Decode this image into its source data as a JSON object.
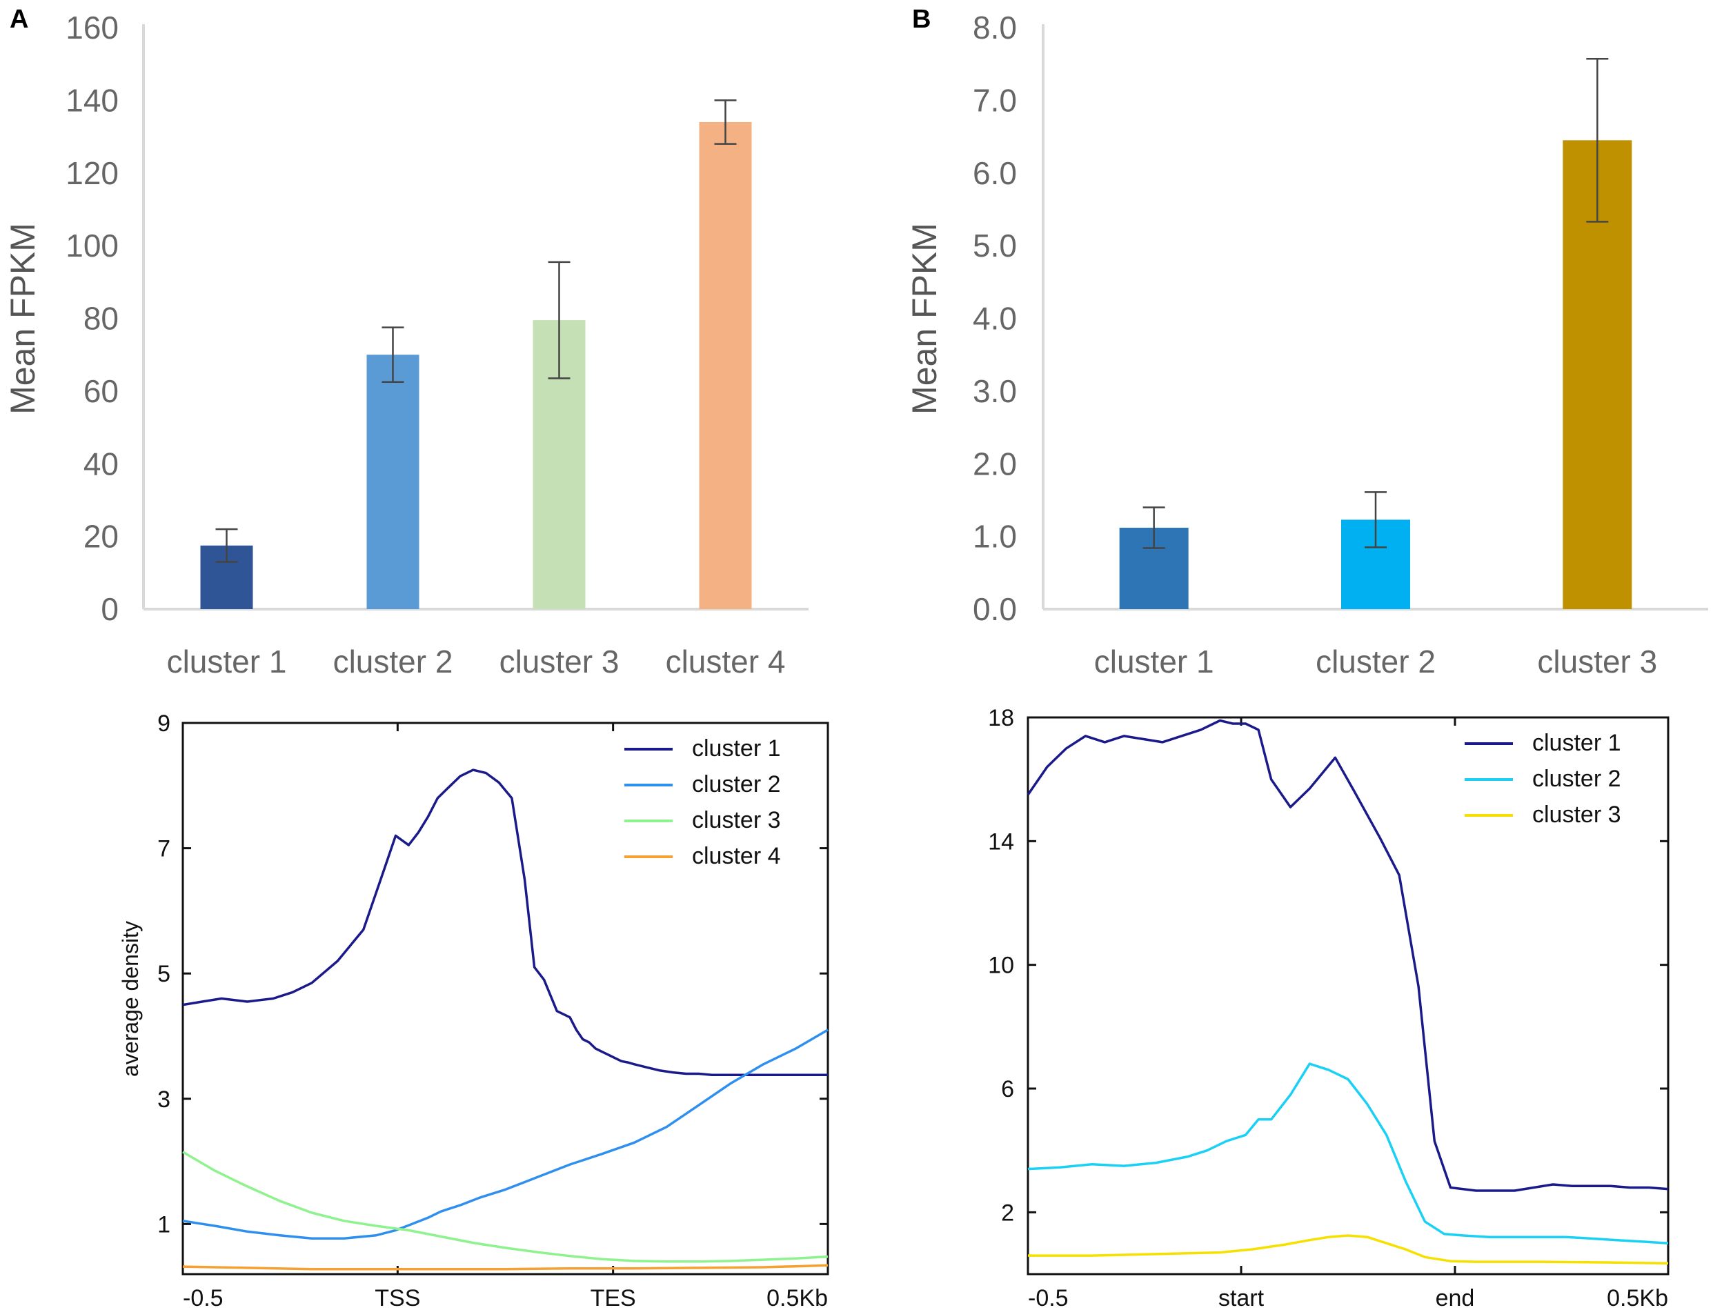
{
  "panels": {
    "a_label": "A",
    "b_label": "B"
  },
  "chart_data": [
    {
      "id": "A-top",
      "type": "bar",
      "title": "",
      "xlabel": "",
      "ylabel": "Mean FPKM",
      "ylim": [
        0,
        160
      ],
      "yticks": [
        "0",
        "20",
        "40",
        "60",
        "80",
        "100",
        "120",
        "140",
        "160"
      ],
      "categories": [
        "cluster 1",
        "cluster 2",
        "cluster 3",
        "cluster 4"
      ],
      "values": [
        17.5,
        70,
        79.5,
        134
      ],
      "errors": [
        4.5,
        7.5,
        16,
        6
      ],
      "colors": [
        "#2f5597",
        "#5b9bd5",
        "#c5e0b4",
        "#f4b183"
      ],
      "grid": false
    },
    {
      "id": "B-top",
      "type": "bar",
      "title": "",
      "xlabel": "",
      "ylabel": "Mean FPKM",
      "ylim": [
        0,
        8
      ],
      "yticks": [
        "0.0",
        "1.0",
        "2.0",
        "3.0",
        "4.0",
        "5.0",
        "6.0",
        "7.0",
        "8.0"
      ],
      "categories": [
        "cluster 1",
        "cluster 2",
        "cluster 3"
      ],
      "values": [
        1.12,
        1.23,
        6.45
      ],
      "errors": [
        0.28,
        0.38,
        1.12
      ],
      "colors": [
        "#2e75b6",
        "#00b0f0",
        "#bf9000"
      ],
      "grid": false
    },
    {
      "id": "A-bottom",
      "type": "line",
      "title": "",
      "xlabel": "",
      "ylabel": "average density",
      "xlim": [
        0,
        100
      ],
      "ylim": [
        0.2,
        9
      ],
      "xticks": [
        {
          "pos": 0,
          "label": "-0.5"
        },
        {
          "pos": 33.3,
          "label": "TSS"
        },
        {
          "pos": 66.7,
          "label": "TES"
        },
        {
          "pos": 100,
          "label": "0.5Kb"
        }
      ],
      "yticks": [
        {
          "value": 1,
          "label": "1"
        },
        {
          "value": 3,
          "label": "3"
        },
        {
          "value": 5,
          "label": "5"
        },
        {
          "value": 7,
          "label": "7"
        },
        {
          "value": 9,
          "label": "9"
        }
      ],
      "legend_position": "top-right",
      "series": [
        {
          "name": "cluster 1",
          "color": "#1a1a8a",
          "x": [
            0,
            3,
            6,
            10,
            14,
            17,
            20,
            24,
            28,
            31,
            33,
            35,
            36.5,
            38,
            39.5,
            41,
            43,
            45,
            47,
            49,
            51,
            53,
            54.5,
            56,
            58,
            60,
            61,
            62,
            63,
            64,
            65,
            66,
            67,
            68,
            69,
            70,
            72,
            74,
            76,
            78,
            80,
            82,
            84,
            86,
            88,
            90,
            92,
            94,
            96,
            98,
            100
          ],
          "y": [
            4.5,
            4.55,
            4.6,
            4.55,
            4.6,
            4.7,
            4.85,
            5.2,
            5.7,
            6.6,
            7.2,
            7.05,
            7.25,
            7.5,
            7.8,
            7.95,
            8.15,
            8.25,
            8.2,
            8.05,
            7.8,
            6.5,
            5.1,
            4.9,
            4.4,
            4.3,
            4.1,
            3.95,
            3.9,
            3.8,
            3.75,
            3.7,
            3.65,
            3.6,
            3.58,
            3.55,
            3.5,
            3.45,
            3.42,
            3.4,
            3.4,
            3.38,
            3.38,
            3.38,
            3.38,
            3.38,
            3.38,
            3.38,
            3.38,
            3.38,
            3.38
          ]
        },
        {
          "name": "cluster 2",
          "color": "#2f8fef",
          "x": [
            0,
            5,
            10,
            15,
            20,
            25,
            30,
            33,
            35,
            38,
            40,
            43,
            46,
            50,
            55,
            60,
            65,
            70,
            75,
            80,
            85,
            90,
            95,
            100
          ],
          "y": [
            1.05,
            0.97,
            0.88,
            0.82,
            0.77,
            0.77,
            0.82,
            0.9,
            0.98,
            1.1,
            1.2,
            1.3,
            1.42,
            1.55,
            1.75,
            1.95,
            2.12,
            2.3,
            2.55,
            2.9,
            3.25,
            3.55,
            3.8,
            4.1
          ]
        },
        {
          "name": "cluster 3",
          "color": "#8ef28e",
          "x": [
            0,
            5,
            10,
            15,
            20,
            25,
            30,
            35,
            40,
            45,
            50,
            55,
            60,
            65,
            70,
            75,
            80,
            85,
            90,
            95,
            100
          ],
          "y": [
            2.15,
            1.85,
            1.6,
            1.37,
            1.18,
            1.05,
            0.97,
            0.9,
            0.8,
            0.7,
            0.62,
            0.55,
            0.49,
            0.44,
            0.41,
            0.4,
            0.4,
            0.41,
            0.43,
            0.45,
            0.48
          ]
        },
        {
          "name": "cluster 4",
          "color": "#f5a030",
          "x": [
            0,
            10,
            20,
            30,
            40,
            50,
            60,
            70,
            80,
            90,
            100
          ],
          "y": [
            0.32,
            0.3,
            0.28,
            0.28,
            0.28,
            0.28,
            0.29,
            0.29,
            0.3,
            0.31,
            0.34
          ]
        }
      ]
    },
    {
      "id": "B-bottom",
      "type": "line",
      "title": "",
      "xlabel": "",
      "ylabel": "",
      "xlim": [
        0,
        100
      ],
      "ylim": [
        0,
        18
      ],
      "xticks": [
        {
          "pos": 0,
          "label": "-0.5"
        },
        {
          "pos": 33.3,
          "label": "start"
        },
        {
          "pos": 66.7,
          "label": "end"
        },
        {
          "pos": 100,
          "label": "0.5Kb"
        }
      ],
      "yticks": [
        {
          "value": 2,
          "label": "2"
        },
        {
          "value": 6,
          "label": "6"
        },
        {
          "value": 10,
          "label": "10"
        },
        {
          "value": 14,
          "label": "14"
        },
        {
          "value": 18,
          "label": "18"
        }
      ],
      "legend_position": "top-right",
      "series": [
        {
          "name": "cluster 1",
          "color": "#1a1a8a",
          "x": [
            0,
            3,
            6,
            9,
            12,
            15,
            18,
            21,
            24,
            27,
            30,
            32,
            34,
            36,
            38,
            41,
            44,
            48,
            51,
            55,
            58,
            61,
            63.5,
            66,
            68,
            70,
            73,
            76,
            79,
            82,
            85,
            88,
            91,
            94,
            97,
            100
          ],
          "y": [
            15.5,
            16.4,
            17.0,
            17.4,
            17.2,
            17.4,
            17.3,
            17.2,
            17.4,
            17.6,
            17.9,
            17.8,
            17.8,
            17.6,
            16.0,
            15.1,
            15.7,
            16.7,
            15.6,
            14.1,
            12.9,
            9.3,
            4.3,
            2.8,
            2.75,
            2.7,
            2.7,
            2.7,
            2.8,
            2.9,
            2.85,
            2.85,
            2.85,
            2.8,
            2.8,
            2.75
          ]
        },
        {
          "name": "cluster 2",
          "color": "#1ad0f5",
          "x": [
            0,
            5,
            10,
            15,
            20,
            25,
            28,
            31,
            34,
            36,
            38,
            41,
            44,
            47,
            50,
            53,
            56,
            59,
            62,
            65,
            68,
            72,
            76,
            80,
            84,
            88,
            92,
            96,
            100
          ],
          "y": [
            3.4,
            3.45,
            3.55,
            3.5,
            3.6,
            3.8,
            4.0,
            4.3,
            4.5,
            5.0,
            5.0,
            5.8,
            6.8,
            6.6,
            6.3,
            5.5,
            4.5,
            3.0,
            1.7,
            1.3,
            1.25,
            1.2,
            1.2,
            1.2,
            1.2,
            1.15,
            1.1,
            1.05,
            1.0
          ]
        },
        {
          "name": "cluster 3",
          "color": "#f5e000",
          "x": [
            0,
            10,
            20,
            30,
            35,
            40,
            44,
            47,
            50,
            53,
            56,
            59,
            62,
            66,
            70,
            80,
            90,
            100
          ],
          "y": [
            0.6,
            0.6,
            0.65,
            0.7,
            0.8,
            0.95,
            1.1,
            1.2,
            1.25,
            1.2,
            1.0,
            0.8,
            0.55,
            0.42,
            0.4,
            0.4,
            0.38,
            0.35
          ]
        }
      ]
    }
  ]
}
